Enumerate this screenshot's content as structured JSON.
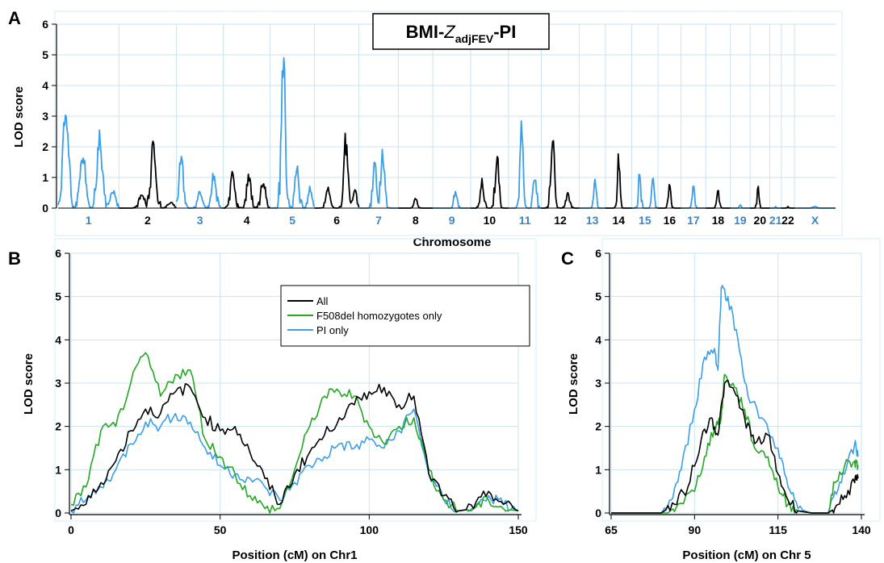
{
  "panels": {
    "a": {
      "letter": "A",
      "title_main": "BMI-",
      "title_italic": "Z",
      "title_sub": "adjFEV",
      "title_end": "-PI",
      "ylabel": "LOD score",
      "xlabel": "Chromosome"
    },
    "b": {
      "letter": "B",
      "ylabel": "LOD score",
      "xlabel": "Position (cM) on Chr1"
    },
    "c": {
      "letter": "C",
      "ylabel": "LOD score",
      "xlabel": "Position (cM) on Chr 5"
    }
  },
  "colors": {
    "black": "#000000",
    "blue": "#3a9ee8",
    "green": "#22a822",
    "grid": "#c9e3f6"
  },
  "chart_data": [
    {
      "id": "genome",
      "type": "line",
      "ylabel": "LOD score",
      "xlabel": "Chromosome",
      "ylim": [
        0,
        6
      ],
      "yticks": [
        "0",
        "1",
        "2",
        "3",
        "4",
        "5",
        "6"
      ],
      "grid": true,
      "chromosomes": [
        {
          "label": "1",
          "color": "blue",
          "w": 74,
          "peaks": [
            [
              0.12,
              3.4
            ],
            [
              0.4,
              1.9
            ],
            [
              0.68,
              2.4
            ],
            [
              0.9,
              0.6
            ]
          ]
        },
        {
          "label": "2",
          "color": "black",
          "w": 70,
          "peaks": [
            [
              0.4,
              0.5
            ],
            [
              0.6,
              2.2
            ],
            [
              0.9,
              0.2
            ]
          ]
        },
        {
          "label": "3",
          "color": "blue",
          "w": 57,
          "peaks": [
            [
              0.1,
              1.7
            ],
            [
              0.5,
              0.6
            ],
            [
              0.8,
              1.2
            ]
          ]
        },
        {
          "label": "4",
          "color": "black",
          "w": 57,
          "peaks": [
            [
              0.2,
              1.2
            ],
            [
              0.55,
              1.1
            ],
            [
              0.85,
              1.0
            ]
          ]
        },
        {
          "label": "5",
          "color": "blue",
          "w": 54,
          "peaks": [
            [
              0.3,
              5.2
            ],
            [
              0.6,
              1.5
            ],
            [
              0.9,
              0.7
            ]
          ]
        },
        {
          "label": "6",
          "color": "black",
          "w": 54,
          "peaks": [
            [
              0.3,
              0.7
            ],
            [
              0.7,
              2.3
            ],
            [
              0.9,
              0.6
            ]
          ]
        },
        {
          "label": "7",
          "color": "blue",
          "w": 48,
          "peaks": [
            [
              0.4,
              1.5
            ],
            [
              0.6,
              2.0
            ]
          ]
        },
        {
          "label": "8",
          "color": "black",
          "w": 42,
          "peaks": [
            [
              0.5,
              0.3
            ]
          ]
        },
        {
          "label": "9",
          "color": "blue",
          "w": 46,
          "peaks": [
            [
              0.6,
              0.6
            ]
          ]
        },
        {
          "label": "10",
          "color": "black",
          "w": 46,
          "peaks": [
            [
              0.3,
              1.0
            ],
            [
              0.7,
              1.9
            ]
          ]
        },
        {
          "label": "11",
          "color": "blue",
          "w": 40,
          "peaks": [
            [
              0.4,
              2.7
            ],
            [
              0.8,
              1.2
            ]
          ]
        },
        {
          "label": "12",
          "color": "black",
          "w": 46,
          "peaks": [
            [
              0.3,
              2.5
            ],
            [
              0.7,
              0.5
            ]
          ]
        },
        {
          "label": "13",
          "color": "blue",
          "w": 32,
          "peaks": [
            [
              0.6,
              1.0
            ]
          ]
        },
        {
          "label": "14",
          "color": "black",
          "w": 32,
          "peaks": [
            [
              0.5,
              1.8
            ]
          ]
        },
        {
          "label": "15",
          "color": "blue",
          "w": 32,
          "peaks": [
            [
              0.3,
              1.3
            ],
            [
              0.8,
              1.0
            ]
          ]
        },
        {
          "label": "16",
          "color": "black",
          "w": 28,
          "peaks": [
            [
              0.5,
              1.0
            ]
          ]
        },
        {
          "label": "17",
          "color": "blue",
          "w": 30,
          "peaks": [
            [
              0.5,
              0.8
            ]
          ]
        },
        {
          "label": "18",
          "color": "black",
          "w": 30,
          "peaks": [
            [
              0.5,
              0.6
            ]
          ]
        },
        {
          "label": "19",
          "color": "blue",
          "w": 24,
          "peaks": [
            [
              0.5,
              0.1
            ]
          ]
        },
        {
          "label": "20",
          "color": "black",
          "w": 24,
          "peaks": [
            [
              0.4,
              0.9
            ]
          ]
        },
        {
          "label": "21",
          "color": "blue",
          "w": 14,
          "peaks": [
            [
              0.5,
              0.05
            ]
          ]
        },
        {
          "label": "22",
          "color": "black",
          "w": 16,
          "peaks": [
            [
              0.5,
              0.05
            ]
          ]
        },
        {
          "label": "X",
          "color": "blue",
          "w": 50,
          "peaks": [
            [
              0.5,
              0.05
            ]
          ]
        }
      ]
    },
    {
      "id": "chr1",
      "type": "line",
      "xlabel": "Position (cM) on Chr1",
      "ylabel": "LOD score",
      "xlim": [
        0,
        150
      ],
      "ylim": [
        0,
        6
      ],
      "xticks": [
        0,
        50,
        100,
        150
      ],
      "yticks": [
        0,
        1,
        2,
        3,
        4,
        5,
        6
      ],
      "legend": "top-right",
      "series": [
        {
          "name": "All",
          "color": "black",
          "points": [
            [
              0,
              0.05
            ],
            [
              5,
              0.2
            ],
            [
              10,
              0.7
            ],
            [
              15,
              1.2
            ],
            [
              20,
              1.9
            ],
            [
              25,
              2.4
            ],
            [
              30,
              2.3
            ],
            [
              35,
              2.8
            ],
            [
              40,
              2.9
            ],
            [
              45,
              2.2
            ],
            [
              50,
              1.9
            ],
            [
              55,
              2.0
            ],
            [
              60,
              1.4
            ],
            [
              65,
              0.8
            ],
            [
              70,
              0.2
            ],
            [
              75,
              0.9
            ],
            [
              80,
              1.4
            ],
            [
              85,
              1.8
            ],
            [
              90,
              2.2
            ],
            [
              95,
              2.5
            ],
            [
              100,
              2.8
            ],
            [
              105,
              2.9
            ],
            [
              110,
              2.5
            ],
            [
              115,
              2.7
            ],
            [
              120,
              0.9
            ],
            [
              125,
              0.4
            ],
            [
              130,
              0.05
            ],
            [
              135,
              0.1
            ],
            [
              140,
              0.5
            ],
            [
              145,
              0.2
            ],
            [
              150,
              0.05
            ]
          ]
        },
        {
          "name": "F508del homozygotes only",
          "color": "green",
          "points": [
            [
              0,
              0.2
            ],
            [
              5,
              0.6
            ],
            [
              10,
              1.9
            ],
            [
              15,
              2.0
            ],
            [
              20,
              3.0
            ],
            [
              25,
              3.7
            ],
            [
              30,
              2.7
            ],
            [
              35,
              3.2
            ],
            [
              40,
              3.3
            ],
            [
              45,
              1.7
            ],
            [
              50,
              1.3
            ],
            [
              55,
              0.9
            ],
            [
              60,
              0.4
            ],
            [
              65,
              0.1
            ],
            [
              70,
              0.1
            ],
            [
              75,
              1.0
            ],
            [
              80,
              2.0
            ],
            [
              85,
              2.7
            ],
            [
              90,
              2.8
            ],
            [
              95,
              2.7
            ],
            [
              100,
              2.0
            ],
            [
              105,
              1.6
            ],
            [
              110,
              2.0
            ],
            [
              115,
              2.2
            ],
            [
              120,
              1.0
            ],
            [
              125,
              0.3
            ],
            [
              130,
              0.05
            ],
            [
              135,
              0.1
            ],
            [
              140,
              0.3
            ],
            [
              145,
              0.1
            ],
            [
              150,
              0.05
            ]
          ]
        },
        {
          "name": "PI only",
          "color": "blue",
          "points": [
            [
              0,
              0.05
            ],
            [
              5,
              0.3
            ],
            [
              10,
              0.6
            ],
            [
              15,
              1.0
            ],
            [
              20,
              1.6
            ],
            [
              25,
              2.1
            ],
            [
              30,
              2.0
            ],
            [
              35,
              2.3
            ],
            [
              40,
              2.1
            ],
            [
              45,
              1.5
            ],
            [
              50,
              1.1
            ],
            [
              55,
              0.9
            ],
            [
              60,
              0.8
            ],
            [
              65,
              0.6
            ],
            [
              70,
              0.3
            ],
            [
              75,
              0.7
            ],
            [
              80,
              1.1
            ],
            [
              85,
              1.3
            ],
            [
              90,
              1.6
            ],
            [
              95,
              1.5
            ],
            [
              100,
              1.7
            ],
            [
              105,
              1.5
            ],
            [
              110,
              1.9
            ],
            [
              115,
              2.4
            ],
            [
              120,
              0.9
            ],
            [
              125,
              0.3
            ],
            [
              130,
              0.05
            ],
            [
              135,
              0.1
            ],
            [
              140,
              0.4
            ],
            [
              145,
              0.2
            ],
            [
              150,
              0.05
            ]
          ]
        }
      ]
    },
    {
      "id": "chr5",
      "type": "line",
      "xlabel": "Position (cM) on Chr 5",
      "ylabel": "LOD score",
      "xlim": [
        65,
        140
      ],
      "ylim": [
        0,
        6
      ],
      "xticks": [
        65,
        90,
        115,
        140
      ],
      "yticks": [
        0,
        1,
        2,
        3,
        4,
        5,
        6
      ],
      "series": [
        {
          "name": "All",
          "color": "black",
          "points": [
            [
              65,
              0
            ],
            [
              80,
              0
            ],
            [
              84,
              0.2
            ],
            [
              88,
              0.6
            ],
            [
              92,
              1.7
            ],
            [
              95,
              2.2
            ],
            [
              97,
              1.8
            ],
            [
              99,
              3.0
            ],
            [
              102,
              2.8
            ],
            [
              105,
              2.2
            ],
            [
              108,
              1.6
            ],
            [
              112,
              1.8
            ],
            [
              115,
              0.9
            ],
            [
              118,
              0.3
            ],
            [
              121,
              0.05
            ],
            [
              125,
              0
            ],
            [
              130,
              0
            ],
            [
              132,
              0.1
            ],
            [
              135,
              0.4
            ],
            [
              138,
              0.7
            ],
            [
              139,
              0.8
            ]
          ]
        },
        {
          "name": "F508del homozygotes only",
          "color": "green",
          "points": [
            [
              65,
              0
            ],
            [
              82,
              0
            ],
            [
              85,
              0.2
            ],
            [
              90,
              0.5
            ],
            [
              93,
              1.3
            ],
            [
              96,
              2.0
            ],
            [
              98,
              2.2
            ],
            [
              99,
              3.2
            ],
            [
              102,
              2.9
            ],
            [
              105,
              2.4
            ],
            [
              108,
              1.5
            ],
            [
              112,
              1.3
            ],
            [
              115,
              0.6
            ],
            [
              118,
              0.2
            ],
            [
              121,
              0.05
            ],
            [
              125,
              0
            ],
            [
              130,
              0
            ],
            [
              132,
              0.7
            ],
            [
              135,
              1.1
            ],
            [
              138,
              1.2
            ],
            [
              139,
              1.1
            ]
          ]
        },
        {
          "name": "PI only",
          "color": "blue",
          "points": [
            [
              65,
              0
            ],
            [
              80,
              0
            ],
            [
              83,
              0.3
            ],
            [
              86,
              1.0
            ],
            [
              90,
              2.4
            ],
            [
              93,
              3.6
            ],
            [
              96,
              3.8
            ],
            [
              97,
              3.3
            ],
            [
              98,
              5.2
            ],
            [
              100,
              5.0
            ],
            [
              103,
              4.0
            ],
            [
              106,
              2.7
            ],
            [
              110,
              2.2
            ],
            [
              115,
              1.5
            ],
            [
              118,
              0.6
            ],
            [
              121,
              0.1
            ],
            [
              125,
              0
            ],
            [
              130,
              0
            ],
            [
              132,
              0.5
            ],
            [
              135,
              0.9
            ],
            [
              138,
              1.6
            ],
            [
              139,
              1.3
            ]
          ]
        }
      ]
    }
  ]
}
